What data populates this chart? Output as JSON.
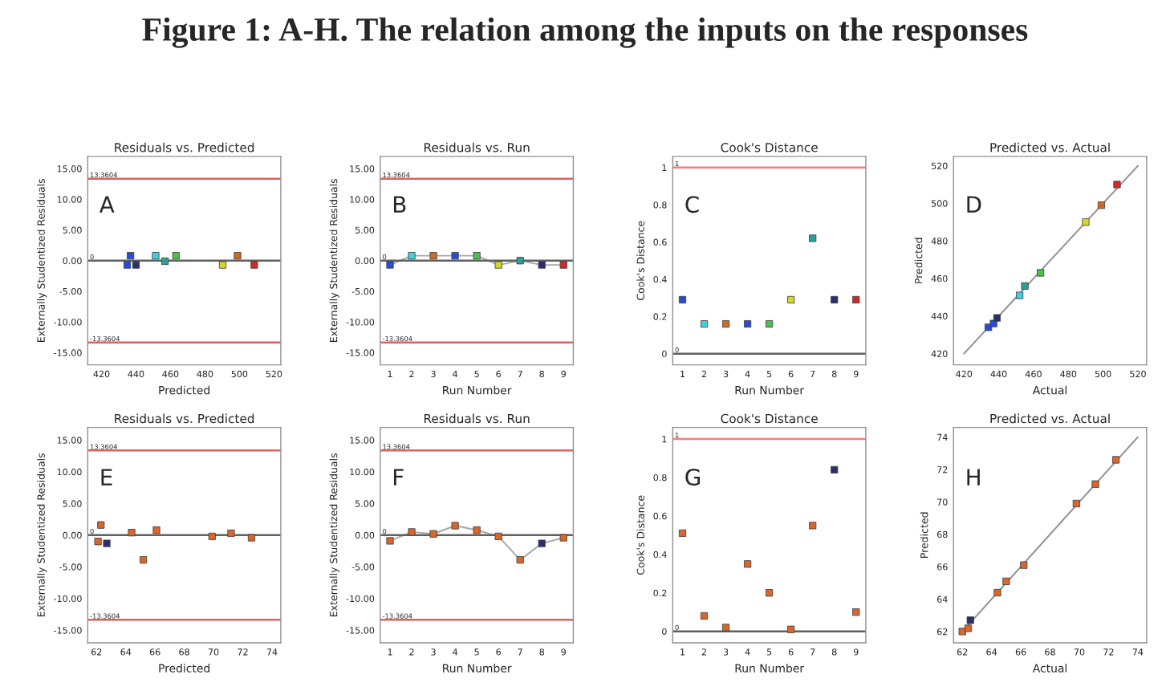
{
  "chart_data": [
    {
      "type": "scatter",
      "title": "Residuals vs. Predicted",
      "xlabel": "Predicted",
      "ylabel": "Externally Studentized Residuals",
      "annotations": [
        "Figure 1: A-H. The relation among the inputs on the responses",
        "A"
      ],
      "marker": "square",
      "x": [
        434.9,
        436.8,
        440,
        451.4,
        456.8,
        463.2,
        490.3,
        498.9,
        508.6
      ],
      "series": [
        {
          "values": [
            -0.7,
            0.8,
            -0.7,
            0.8,
            -0.1,
            0.8,
            -0.7,
            0.8,
            -0.7
          ],
          "colors": [
            "#2a4bd7",
            "#2a4bd7",
            "#2b2f6e",
            "#3fd0e0",
            "#2aa198",
            "#4cc04c",
            "#d6d62a",
            "#d2691e",
            "#d62828"
          ]
        }
      ],
      "xlim": [
        412,
        524
      ],
      "xticks": [
        420,
        440,
        460,
        480,
        500,
        520
      ],
      "ylim": [
        -17,
        17
      ],
      "yticks": [
        {
          "value": -15,
          "label": "-15.00"
        },
        {
          "value": -10,
          "label": "-10.00"
        },
        {
          "value": -5,
          "label": "-5.00"
        },
        {
          "value": 0,
          "label": "0.00"
        },
        {
          "value": 5,
          "label": "5.00"
        },
        {
          "value": 10,
          "label": "10.00"
        },
        {
          "value": 15,
          "label": "15.00"
        }
      ],
      "ref_lines": [
        {
          "axis": "y",
          "value": 13.3604,
          "label": "13.3604",
          "color": "#e06060"
        },
        {
          "axis": "y",
          "value": -13.3604,
          "label": "-13.3604",
          "color": "#e06060"
        },
        {
          "axis": "y",
          "value": 0,
          "label": "0",
          "color": "#606060"
        }
      ]
    },
    {
      "type": "line",
      "title": "Residuals vs. Run",
      "xlabel": "Run Number",
      "ylabel": "Externally Studentized Residuals",
      "annotations": [
        "B"
      ],
      "marker": "square",
      "x": [
        1,
        2,
        3,
        4,
        5,
        6,
        7,
        8,
        9
      ],
      "series": [
        {
          "color": "#a8a8a8",
          "values": [
            -0.7,
            0.8,
            0.8,
            0.8,
            0.8,
            -0.7,
            0,
            -0.7,
            -0.7
          ],
          "colors": [
            "#2a4bd7",
            "#3fd0e0",
            "#d2691e",
            "#2a4bd7",
            "#4cc04c",
            "#d6d62a",
            "#2aa198",
            "#2b2f6e",
            "#d62828"
          ]
        }
      ],
      "xlim": [
        0.55,
        9.45
      ],
      "xticks": [
        1,
        2,
        3,
        4,
        5,
        6,
        7,
        8,
        9
      ],
      "ylim": [
        -17,
        17
      ],
      "yticks": [
        {
          "value": -15,
          "label": "-15.00"
        },
        {
          "value": -10,
          "label": "-10.00"
        },
        {
          "value": -5,
          "label": "-5.00"
        },
        {
          "value": 0,
          "label": "0.00"
        },
        {
          "value": 5,
          "label": "5.00"
        },
        {
          "value": 10,
          "label": "10.00"
        },
        {
          "value": 15,
          "label": "15.00"
        }
      ],
      "ref_lines": [
        {
          "axis": "y",
          "value": 13.3604,
          "label": "13.3604",
          "color": "#e06060"
        },
        {
          "axis": "y",
          "value": -13.3604,
          "label": "-13.3604",
          "color": "#e06060"
        },
        {
          "axis": "y",
          "value": 0,
          "label": "0",
          "color": "#606060"
        }
      ]
    },
    {
      "type": "scatter",
      "title": "Cook's Distance",
      "xlabel": "Run Number",
      "ylabel": "Cook's Distance",
      "annotations": [
        "C"
      ],
      "marker": "square",
      "x": [
        1,
        2,
        3,
        4,
        5,
        6,
        7,
        8,
        9
      ],
      "series": [
        {
          "values": [
            0.29,
            0.16,
            0.16,
            0.16,
            0.16,
            0.29,
            0.62,
            0.29,
            0.29
          ],
          "colors": [
            "#2a4bd7",
            "#3fd0e0",
            "#d2691e",
            "#2a4bd7",
            "#4cc04c",
            "#d6d62a",
            "#2aa198",
            "#2b2f6e",
            "#d62828"
          ]
        }
      ],
      "xlim": [
        0.55,
        9.45
      ],
      "xticks": [
        1,
        2,
        3,
        4,
        5,
        6,
        7,
        8,
        9
      ],
      "ylim": [
        -0.06,
        1.06
      ],
      "yticks": [
        0,
        0.2,
        0.4,
        0.6,
        0.8,
        1
      ],
      "ref_lines": [
        {
          "axis": "y",
          "value": 1,
          "label": "1",
          "color": "#f08080"
        },
        {
          "axis": "y",
          "value": 0,
          "label": "0",
          "color": "#606060"
        }
      ]
    },
    {
      "type": "scatter",
      "title": "Predicted vs. Actual",
      "xlabel": "Actual",
      "ylabel": "Predicted",
      "annotations": [
        "D"
      ],
      "marker": "square",
      "series": [
        {
          "type": "line",
          "x": [
            420,
            520
          ],
          "values": [
            420,
            520
          ],
          "color": "#909090",
          "marker": "none"
        },
        {
          "x": [
            434,
            437,
            439,
            452,
            455,
            464,
            490,
            499,
            508
          ],
          "values": [
            434,
            436,
            439,
            451,
            456,
            463,
            490,
            499,
            510
          ],
          "colors": [
            "#2a4bd7",
            "#2a4bd7",
            "#2b2f6e",
            "#3fd0e0",
            "#2aa198",
            "#4cc04c",
            "#d6d62a",
            "#d2691e",
            "#d62828"
          ]
        }
      ],
      "xlim": [
        414,
        525
      ],
      "xticks": [
        420,
        440,
        460,
        480,
        500,
        520
      ],
      "ylim": [
        414,
        525
      ],
      "yticks": [
        420,
        440,
        460,
        480,
        500,
        520
      ]
    },
    {
      "type": "scatter",
      "title": "Residuals vs. Predicted",
      "xlabel": "Predicted",
      "ylabel": "Externally Studentized Residuals",
      "annotations": [
        "E"
      ],
      "marker": "square",
      "x": [
        62.1,
        62.3,
        62.7,
        64.4,
        65.2,
        66.1,
        69.9,
        71.2,
        72.6
      ],
      "series": [
        {
          "values": [
            -1.0,
            1.6,
            -1.3,
            0.4,
            -3.9,
            0.8,
            -0.2,
            0.3,
            -0.4
          ],
          "colors": [
            "#d9662a",
            "#d9662a",
            "#2b2f6e",
            "#d9662a",
            "#d9662a",
            "#d9662a",
            "#d9662a",
            "#d9662a",
            "#d9662a"
          ]
        }
      ],
      "xlim": [
        61.4,
        74.6
      ],
      "xticks": [
        62,
        64,
        66,
        68,
        70,
        72,
        74
      ],
      "ylim": [
        -17,
        17
      ],
      "yticks": [
        {
          "value": -15,
          "label": "-15.00"
        },
        {
          "value": -10,
          "label": "-10.00"
        },
        {
          "value": -5,
          "label": "-5.00"
        },
        {
          "value": 0,
          "label": "0.00"
        },
        {
          "value": 5,
          "label": "5.00"
        },
        {
          "value": 10,
          "label": "10.00"
        },
        {
          "value": 15,
          "label": "15.00"
        }
      ],
      "ref_lines": [
        {
          "axis": "y",
          "value": 13.3604,
          "label": "13.3604",
          "color": "#e06060"
        },
        {
          "axis": "y",
          "value": -13.3604,
          "label": "-13.3604",
          "color": "#e06060"
        },
        {
          "axis": "y",
          "value": 0,
          "label": "0",
          "color": "#606060"
        }
      ]
    },
    {
      "type": "line",
      "title": "Residuals vs. Run",
      "xlabel": "Run Number",
      "ylabel": "Externally Studentized Residuals",
      "annotations": [
        "F"
      ],
      "marker": "square",
      "x": [
        1,
        2,
        3,
        4,
        5,
        6,
        7,
        8,
        9
      ],
      "series": [
        {
          "color": "#a8a8a8",
          "values": [
            -0.9,
            0.5,
            0.2,
            1.5,
            0.8,
            -0.2,
            -3.9,
            -1.3,
            -0.4
          ],
          "colors": [
            "#d9662a",
            "#d9662a",
            "#d9662a",
            "#d9662a",
            "#d9662a",
            "#d9662a",
            "#d9662a",
            "#2b2f6e",
            "#d9662a"
          ]
        }
      ],
      "xlim": [
        0.55,
        9.45
      ],
      "xticks": [
        1,
        2,
        3,
        4,
        5,
        6,
        7,
        8,
        9
      ],
      "ylim": [
        -17,
        17
      ],
      "yticks": [
        {
          "value": -15,
          "label": "-15.00"
        },
        {
          "value": -10,
          "label": "-10.00"
        },
        {
          "value": -5,
          "label": "-5.00"
        },
        {
          "value": 0,
          "label": "0.00"
        },
        {
          "value": 5,
          "label": "5.00"
        },
        {
          "value": 10,
          "label": "10.00"
        },
        {
          "value": 15,
          "label": "15.00"
        }
      ],
      "ref_lines": [
        {
          "axis": "y",
          "value": 13.3604,
          "label": "13.3604",
          "color": "#e06060"
        },
        {
          "axis": "y",
          "value": -13.3604,
          "label": "-13.3604",
          "color": "#e06060"
        },
        {
          "axis": "y",
          "value": 0,
          "label": "0",
          "color": "#606060"
        }
      ]
    },
    {
      "type": "scatter",
      "title": "Cook's Distance",
      "xlabel": "Run Number",
      "ylabel": "Cook's Distance",
      "annotations": [
        "G"
      ],
      "marker": "square",
      "x": [
        1,
        2,
        3,
        4,
        5,
        6,
        7,
        8,
        9
      ],
      "series": [
        {
          "values": [
            0.51,
            0.08,
            0.02,
            0.35,
            0.2,
            0.01,
            0.55,
            0.84,
            0.1
          ],
          "colors": [
            "#d9662a",
            "#d9662a",
            "#d9662a",
            "#d9662a",
            "#d9662a",
            "#d9662a",
            "#d9662a",
            "#2b2f6e",
            "#d9662a"
          ]
        }
      ],
      "xlim": [
        0.55,
        9.45
      ],
      "xticks": [
        1,
        2,
        3,
        4,
        5,
        6,
        7,
        8,
        9
      ],
      "ylim": [
        -0.06,
        1.06
      ],
      "yticks": [
        0,
        0.2,
        0.4,
        0.6,
        0.8,
        1
      ],
      "ref_lines": [
        {
          "axis": "y",
          "value": 1,
          "label": "1",
          "color": "#f08080"
        },
        {
          "axis": "y",
          "value": 0,
          "label": "0",
          "color": "#606060"
        }
      ]
    },
    {
      "type": "scatter",
      "title": "Predicted vs. Actual",
      "xlabel": "Actual",
      "ylabel": "Predicted",
      "annotations": [
        "H"
      ],
      "marker": "square",
      "series": [
        {
          "type": "line",
          "x": [
            62,
            74
          ],
          "values": [
            62,
            74
          ],
          "color": "#909090",
          "marker": "none"
        },
        {
          "x": [
            62,
            62.4,
            62.55,
            64.4,
            65,
            66.2,
            69.8,
            71.1,
            72.5
          ],
          "values": [
            62,
            62.2,
            62.7,
            64.4,
            65.1,
            66.1,
            69.9,
            71.1,
            72.6
          ],
          "colors": [
            "#d9662a",
            "#d9662a",
            "#2b2f6e",
            "#d9662a",
            "#d9662a",
            "#d9662a",
            "#d9662a",
            "#d9662a",
            "#d9662a"
          ]
        }
      ],
      "xlim": [
        61.4,
        74.6
      ],
      "xticks": [
        62,
        64,
        66,
        68,
        70,
        72,
        74
      ],
      "ylim": [
        61.3,
        74.6
      ],
      "yticks": [
        62,
        64,
        66,
        68,
        70,
        72,
        74
      ]
    }
  ]
}
